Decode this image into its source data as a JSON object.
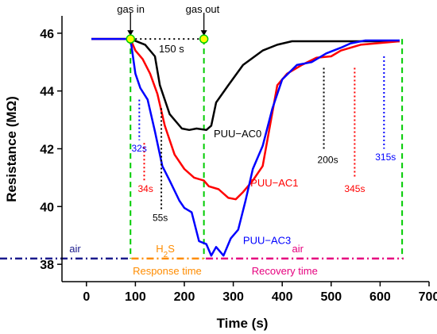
{
  "chart_data": {
    "type": "line",
    "xlabel": "Time (s)",
    "ylabel": "Resistance (MΩ)",
    "xlim": [
      -50,
      700
    ],
    "ylim": [
      37.4,
      46.6
    ],
    "xticks": [
      0,
      100,
      200,
      300,
      400,
      500,
      600,
      700
    ],
    "yticks": [
      38,
      40,
      42,
      44,
      46
    ],
    "series": [
      {
        "name": "PUU-AC0",
        "color": "#000000",
        "points": [
          [
            10,
            45.8
          ],
          [
            90,
            45.8
          ],
          [
            120,
            45.6
          ],
          [
            140,
            45.2
          ],
          [
            150,
            44.2
          ],
          [
            170,
            43.2
          ],
          [
            195,
            42.7
          ],
          [
            210,
            42.65
          ],
          [
            225,
            42.7
          ],
          [
            245,
            42.65
          ],
          [
            255,
            42.8
          ],
          [
            265,
            43.6
          ],
          [
            290,
            44.2
          ],
          [
            320,
            44.9
          ],
          [
            360,
            45.4
          ],
          [
            390,
            45.6
          ],
          [
            420,
            45.72
          ],
          [
            500,
            45.72
          ],
          [
            640,
            45.72
          ]
        ]
      },
      {
        "name": "PUU-AC1",
        "color": "#ff0000",
        "points": [
          [
            10,
            45.8
          ],
          [
            90,
            45.8
          ],
          [
            100,
            45.4
          ],
          [
            115,
            45.1
          ],
          [
            130,
            44.6
          ],
          [
            145,
            43.9
          ],
          [
            160,
            42.8
          ],
          [
            180,
            41.8
          ],
          [
            200,
            41.3
          ],
          [
            220,
            41.0
          ],
          [
            240,
            40.9
          ],
          [
            250,
            40.7
          ],
          [
            270,
            40.6
          ],
          [
            290,
            40.3
          ],
          [
            305,
            40.25
          ],
          [
            320,
            40.5
          ],
          [
            340,
            40.9
          ],
          [
            360,
            41.4
          ],
          [
            375,
            42.8
          ],
          [
            390,
            44.2
          ],
          [
            410,
            44.6
          ],
          [
            440,
            44.9
          ],
          [
            470,
            45.15
          ],
          [
            500,
            45.2
          ],
          [
            520,
            45.4
          ],
          [
            560,
            45.6
          ],
          [
            640,
            45.72
          ]
        ]
      },
      {
        "name": "PUU-AC3",
        "color": "#0000ff",
        "points": [
          [
            10,
            45.8
          ],
          [
            90,
            45.8
          ],
          [
            100,
            44.6
          ],
          [
            110,
            44.1
          ],
          [
            125,
            43.7
          ],
          [
            140,
            42.6
          ],
          [
            155,
            41.4
          ],
          [
            170,
            40.9
          ],
          [
            190,
            40.2
          ],
          [
            200,
            39.95
          ],
          [
            215,
            39.8
          ],
          [
            230,
            38.8
          ],
          [
            245,
            38.7
          ],
          [
            255,
            38.3
          ],
          [
            265,
            38.6
          ],
          [
            280,
            38.3
          ],
          [
            295,
            38.9
          ],
          [
            310,
            39.2
          ],
          [
            325,
            40.2
          ],
          [
            340,
            41.3
          ],
          [
            360,
            42.1
          ],
          [
            380,
            43.4
          ],
          [
            400,
            44.4
          ],
          [
            430,
            44.9
          ],
          [
            460,
            45.0
          ],
          [
            490,
            45.3
          ],
          [
            520,
            45.5
          ],
          [
            540,
            45.65
          ],
          [
            570,
            45.75
          ],
          [
            640,
            45.75
          ]
        ]
      }
    ],
    "series_labels": [
      "PUU−AC0",
      "PUU−AC1",
      "PUU−AC3"
    ],
    "annotations": {
      "gas_in": "gas in",
      "gas_out": "gas out",
      "duration": "150 s",
      "t32": "32s",
      "t34": "34s",
      "t55": "55s",
      "t200": "200s",
      "t345": "345s",
      "t315": "315s",
      "air_left": "air",
      "h2s_main": "H",
      "h2s_sub": "2",
      "h2s_tail": "S",
      "air_right": "air",
      "response": "Response time",
      "recovery": "Recovery time"
    },
    "markers": {
      "gas_in_x": 90,
      "gas_out_x": 240,
      "end_x": 645
    }
  },
  "colors": {
    "ac0": "#000000",
    "ac1": "#ff0000",
    "ac3": "#0000ff",
    "guide": "#00cc00",
    "baseline_air": "#1a1a8c",
    "baseline_h2s": "#ff8c00",
    "baseline_recovery": "#e6007e",
    "marker_fill": "#ffff00"
  }
}
